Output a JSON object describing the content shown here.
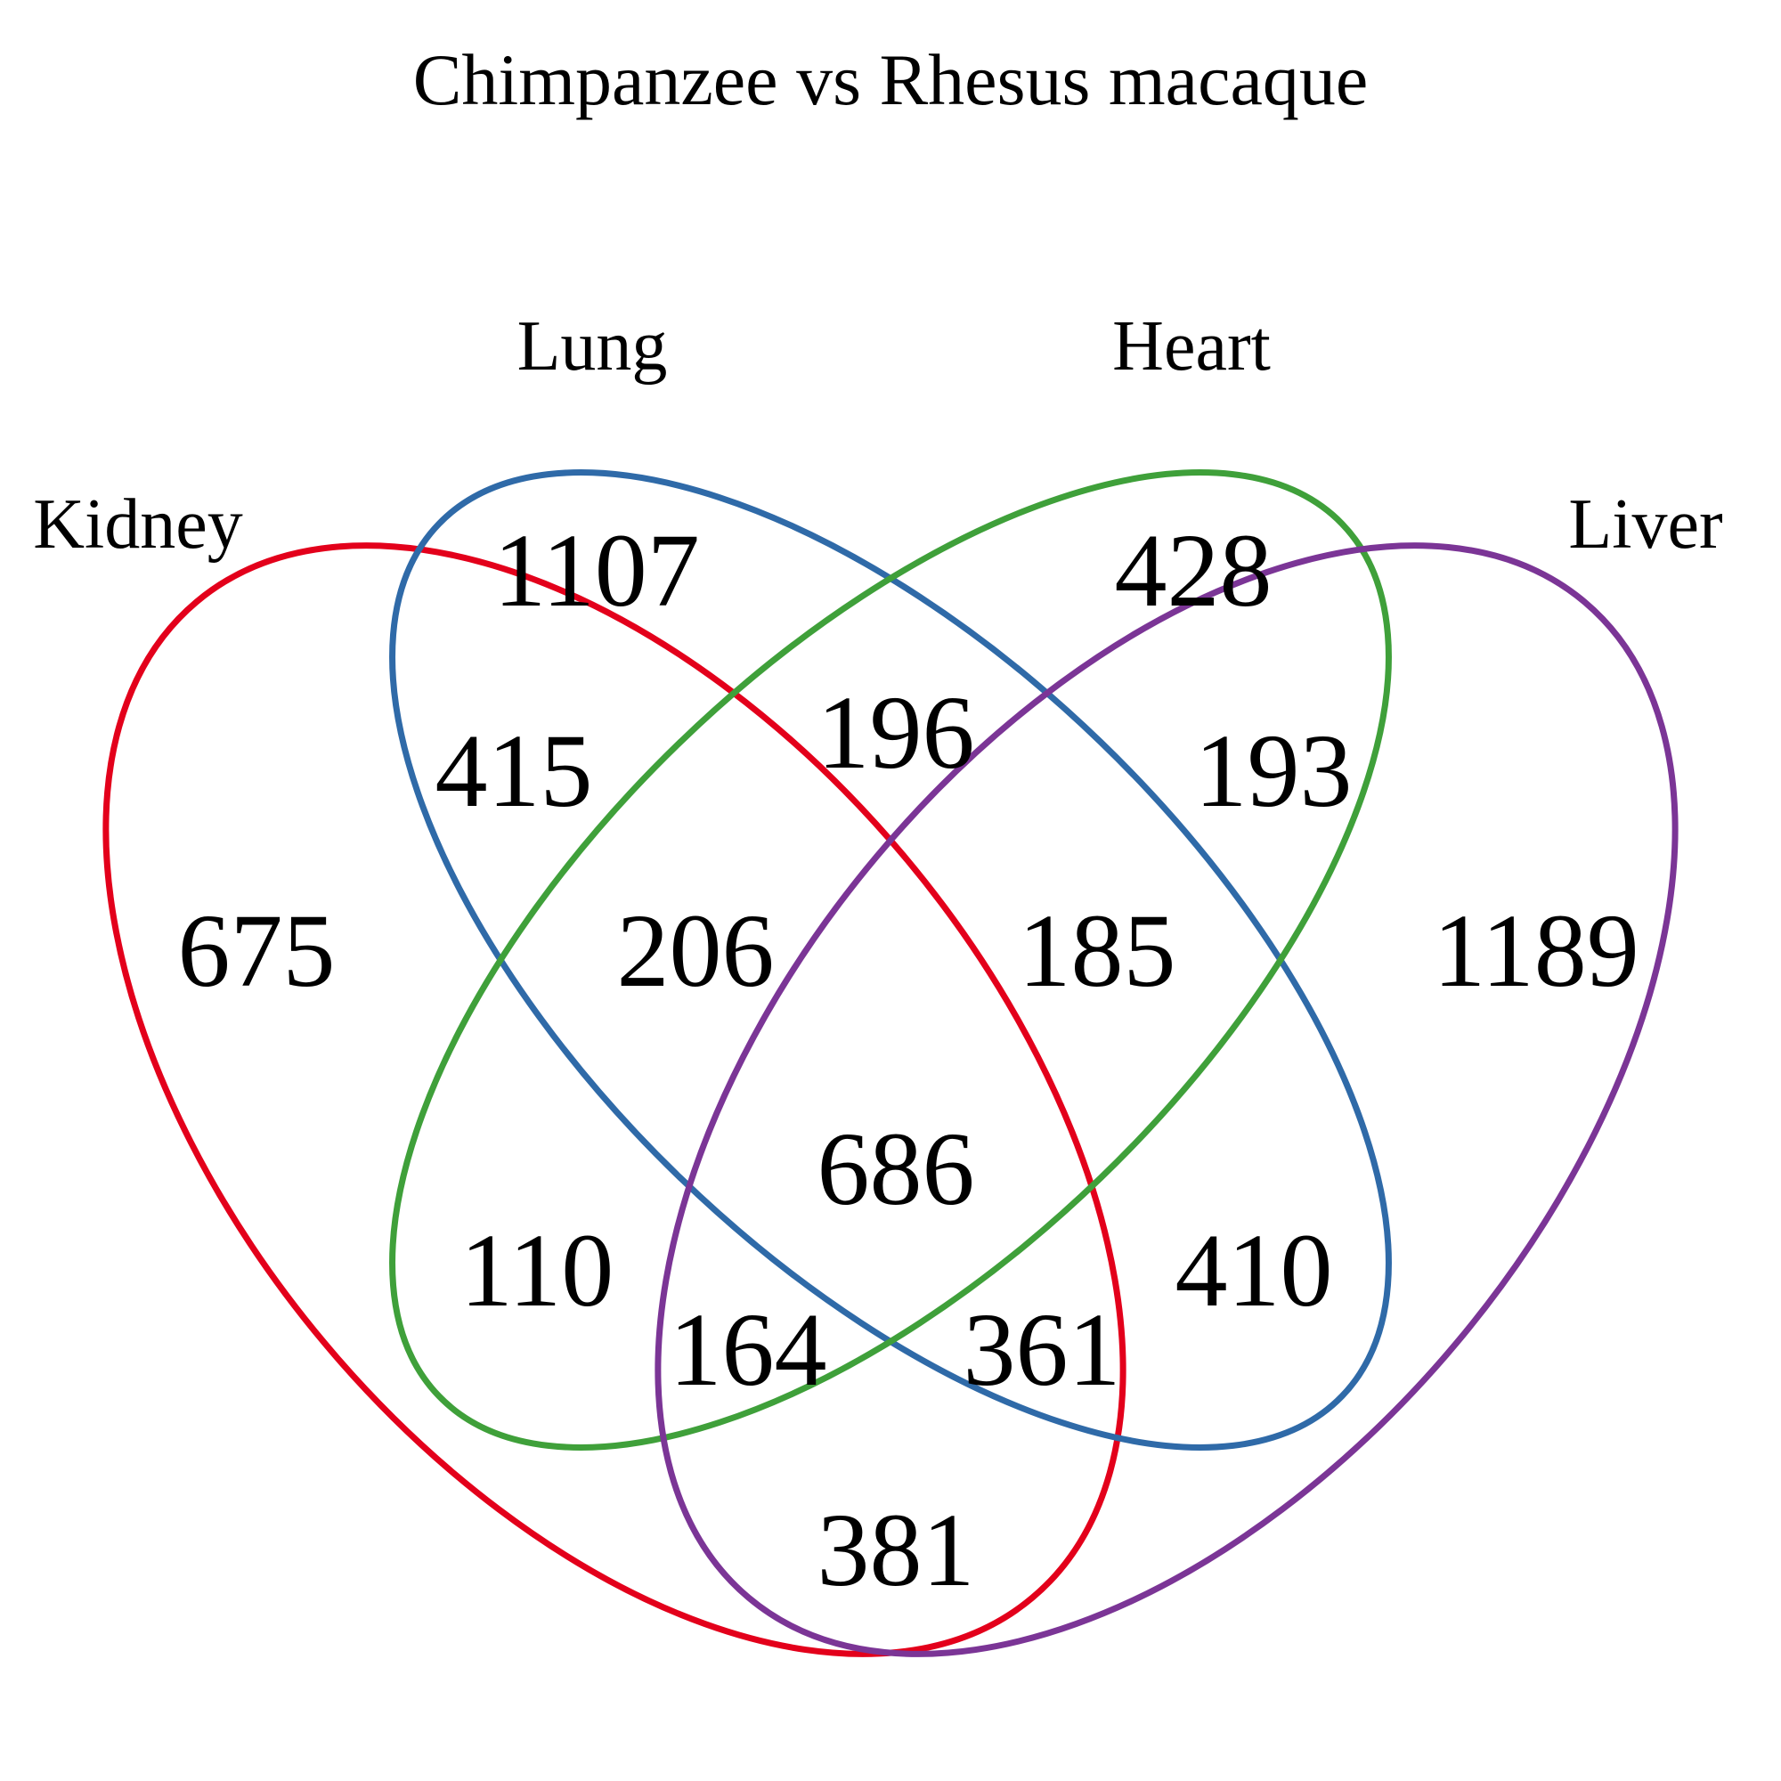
{
  "title": "Chimpanzee vs Rhesus macaque",
  "sets": [
    {
      "name": "Kidney",
      "color": "#e3001b"
    },
    {
      "name": "Lung",
      "color": "#2f6aa8"
    },
    {
      "name": "Heart",
      "color": "#3fa03a"
    },
    {
      "name": "Liver",
      "color": "#7b3596"
    }
  ],
  "regions": {
    "kidney_only": "675",
    "lung_only": "1107",
    "heart_only": "428",
    "liver_only": "1189",
    "kidney_lung": "415",
    "lung_heart": "196",
    "heart_liver": "193",
    "kidney_lung_heart": "206",
    "lung_heart_liver": "185",
    "all_four": "686",
    "kidney_heart": "110",
    "lung_liver": "410",
    "kidney_heart_liver": "164",
    "kidney_lung_liver": "361",
    "kidney_liver": "381"
  }
}
